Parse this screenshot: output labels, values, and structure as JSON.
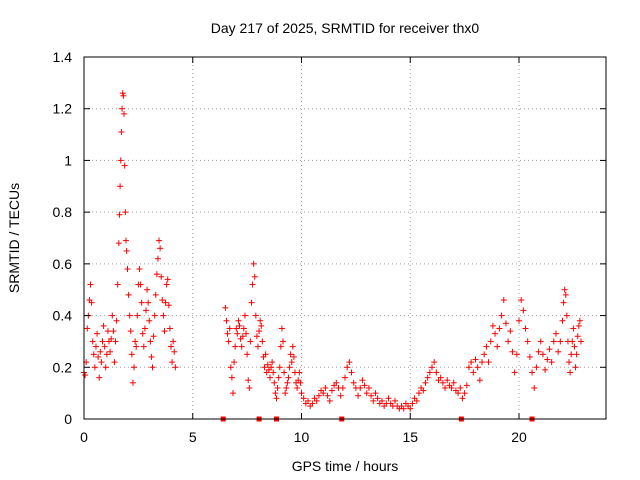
{
  "chart_data": {
    "type": "scatter",
    "title": "Day 217 of 2025, SRMTID for receiver thx0",
    "xlabel": "GPS time / hours",
    "ylabel": "SRMTID / TECUs",
    "xlim": [
      0,
      24
    ],
    "ylim": [
      0,
      1.4
    ],
    "x_ticks": [
      0,
      5,
      10,
      15,
      20
    ],
    "x_tick_labels": [
      "0",
      "5",
      "10",
      "15",
      "20"
    ],
    "y_ticks": [
      0,
      0.2,
      0.4,
      0.6,
      0.8,
      1.0,
      1.2,
      1.4
    ],
    "y_tick_labels": [
      "0",
      "0.2",
      "0.4",
      "0.6",
      "0.8",
      "1",
      "1.2",
      "1.4"
    ],
    "grid": true,
    "marker": "+",
    "color": "#ff0000",
    "series": [
      {
        "name": "SRMTID",
        "points": [
          [
            0.0,
            0.18
          ],
          [
            0.05,
            0.17
          ],
          [
            0.1,
            0.22
          ],
          [
            0.15,
            0.35
          ],
          [
            0.2,
            0.4
          ],
          [
            0.25,
            0.46
          ],
          [
            0.3,
            0.52
          ],
          [
            0.35,
            0.45
          ],
          [
            0.4,
            0.3
          ],
          [
            0.45,
            0.25
          ],
          [
            0.5,
            0.2
          ],
          [
            0.55,
            0.28
          ],
          [
            0.6,
            0.33
          ],
          [
            0.65,
            0.24
          ],
          [
            0.7,
            0.16
          ],
          [
            0.75,
            0.26
          ],
          [
            0.8,
            0.22
          ],
          [
            0.85,
            0.3
          ],
          [
            0.9,
            0.36
          ],
          [
            0.95,
            0.28
          ],
          [
            1.0,
            0.2
          ],
          [
            1.05,
            0.25
          ],
          [
            1.1,
            0.34
          ],
          [
            1.15,
            0.3
          ],
          [
            1.2,
            0.26
          ],
          [
            1.25,
            0.31
          ],
          [
            1.3,
            0.4
          ],
          [
            1.35,
            0.34
          ],
          [
            1.4,
            0.22
          ],
          [
            1.45,
            0.3
          ],
          [
            1.5,
            0.38
          ],
          [
            1.55,
            0.52
          ],
          [
            1.6,
            0.68
          ],
          [
            1.63,
            0.79
          ],
          [
            1.66,
            0.9
          ],
          [
            1.69,
            1.0
          ],
          [
            1.72,
            1.11
          ],
          [
            1.75,
            1.2
          ],
          [
            1.78,
            1.26
          ],
          [
            1.81,
            1.25
          ],
          [
            1.84,
            1.18
          ],
          [
            1.87,
            0.98
          ],
          [
            1.9,
            0.8
          ],
          [
            1.93,
            0.69
          ],
          [
            1.96,
            0.65
          ],
          [
            2.0,
            0.58
          ],
          [
            2.05,
            0.48
          ],
          [
            2.1,
            0.4
          ],
          [
            2.15,
            0.34
          ],
          [
            2.2,
            0.25
          ],
          [
            2.25,
            0.14
          ],
          [
            2.3,
            0.2
          ],
          [
            2.35,
            0.3
          ],
          [
            2.4,
            0.28
          ],
          [
            2.45,
            0.4
          ],
          [
            2.5,
            0.52
          ],
          [
            2.55,
            0.58
          ],
          [
            2.6,
            0.52
          ],
          [
            2.65,
            0.45
          ],
          [
            2.7,
            0.33
          ],
          [
            2.75,
            0.28
          ],
          [
            2.8,
            0.35
          ],
          [
            2.85,
            0.42
          ],
          [
            2.9,
            0.5
          ],
          [
            2.95,
            0.45
          ],
          [
            3.0,
            0.38
          ],
          [
            3.05,
            0.3
          ],
          [
            3.1,
            0.24
          ],
          [
            3.15,
            0.2
          ],
          [
            3.2,
            0.32
          ],
          [
            3.25,
            0.4
          ],
          [
            3.3,
            0.48
          ],
          [
            3.35,
            0.56
          ],
          [
            3.4,
            0.62
          ],
          [
            3.45,
            0.69
          ],
          [
            3.5,
            0.66
          ],
          [
            3.55,
            0.55
          ],
          [
            3.6,
            0.46
          ],
          [
            3.65,
            0.4
          ],
          [
            3.7,
            0.34
          ],
          [
            3.75,
            0.45
          ],
          [
            3.8,
            0.52
          ],
          [
            3.85,
            0.54
          ],
          [
            3.9,
            0.44
          ],
          [
            3.95,
            0.35
          ],
          [
            4.0,
            0.28
          ],
          [
            4.05,
            0.22
          ],
          [
            4.1,
            0.3
          ],
          [
            4.15,
            0.26
          ],
          [
            4.2,
            0.2
          ],
          [
            6.5,
            0.43
          ],
          [
            6.55,
            0.38
          ],
          [
            6.6,
            0.33
          ],
          [
            6.65,
            0.3
          ],
          [
            6.7,
            0.35
          ],
          [
            6.75,
            0.2
          ],
          [
            6.8,
            0.16
          ],
          [
            6.85,
            0.1
          ],
          [
            6.9,
            0.22
          ],
          [
            6.95,
            0.28
          ],
          [
            7.0,
            0.35
          ],
          [
            7.05,
            0.33
          ],
          [
            7.1,
            0.38
          ],
          [
            7.15,
            0.36
          ],
          [
            7.2,
            0.31
          ],
          [
            7.25,
            0.28
          ],
          [
            7.3,
            0.32
          ],
          [
            7.35,
            0.35
          ],
          [
            7.4,
            0.4
          ],
          [
            7.45,
            0.33
          ],
          [
            7.5,
            0.25
          ],
          [
            7.55,
            0.15
          ],
          [
            7.6,
            0.12
          ],
          [
            7.65,
            0.3
          ],
          [
            7.7,
            0.45
          ],
          [
            7.75,
            0.52
          ],
          [
            7.8,
            0.6
          ],
          [
            7.85,
            0.55
          ],
          [
            7.9,
            0.4
          ],
          [
            7.95,
            0.32
          ],
          [
            8.0,
            0.28
          ],
          [
            8.05,
            0.34
          ],
          [
            8.1,
            0.38
          ],
          [
            8.15,
            0.36
          ],
          [
            8.2,
            0.3
          ],
          [
            8.25,
            0.24
          ],
          [
            8.3,
            0.2
          ],
          [
            8.35,
            0.25
          ],
          [
            8.4,
            0.18
          ],
          [
            8.45,
            0.21
          ],
          [
            8.5,
            0.19
          ],
          [
            8.55,
            0.16
          ],
          [
            8.6,
            0.2
          ],
          [
            8.65,
            0.22
          ],
          [
            8.7,
            0.18
          ],
          [
            8.75,
            0.14
          ],
          [
            8.8,
            0.1
          ],
          [
            8.85,
            0.08
          ],
          [
            8.9,
            0.12
          ],
          [
            8.95,
            0.16
          ],
          [
            9.0,
            0.2
          ],
          [
            9.05,
            0.28
          ],
          [
            9.1,
            0.35
          ],
          [
            9.15,
            0.3
          ],
          [
            9.2,
            0.18
          ],
          [
            9.25,
            0.1
          ],
          [
            9.3,
            0.12
          ],
          [
            9.35,
            0.14
          ],
          [
            9.4,
            0.16
          ],
          [
            9.45,
            0.2
          ],
          [
            9.5,
            0.25
          ],
          [
            9.55,
            0.22
          ],
          [
            9.6,
            0.28
          ],
          [
            9.65,
            0.24
          ],
          [
            9.7,
            0.18
          ],
          [
            9.75,
            0.14
          ],
          [
            9.8,
            0.12
          ],
          [
            9.85,
            0.15
          ],
          [
            9.9,
            0.18
          ],
          [
            9.95,
            0.14
          ],
          [
            10.0,
            0.1
          ],
          [
            10.1,
            0.08
          ],
          [
            10.2,
            0.06
          ],
          [
            10.3,
            0.07
          ],
          [
            10.4,
            0.05
          ],
          [
            10.5,
            0.06
          ],
          [
            10.6,
            0.08
          ],
          [
            10.7,
            0.07
          ],
          [
            10.8,
            0.09
          ],
          [
            10.9,
            0.11
          ],
          [
            11.0,
            0.1
          ],
          [
            11.1,
            0.12
          ],
          [
            11.2,
            0.09
          ],
          [
            11.3,
            0.07
          ],
          [
            11.4,
            0.11
          ],
          [
            11.5,
            0.13
          ],
          [
            11.6,
            0.14
          ],
          [
            11.7,
            0.12
          ],
          [
            11.8,
            0.09
          ],
          [
            11.9,
            0.12
          ],
          [
            12.0,
            0.16
          ],
          [
            12.1,
            0.2
          ],
          [
            12.2,
            0.22
          ],
          [
            12.3,
            0.18
          ],
          [
            12.4,
            0.14
          ],
          [
            12.5,
            0.12
          ],
          [
            12.6,
            0.09
          ],
          [
            12.7,
            0.12
          ],
          [
            12.8,
            0.15
          ],
          [
            12.9,
            0.13
          ],
          [
            13.0,
            0.1
          ],
          [
            13.1,
            0.12
          ],
          [
            13.2,
            0.09
          ],
          [
            13.3,
            0.07
          ],
          [
            13.4,
            0.1
          ],
          [
            13.5,
            0.08
          ],
          [
            13.6,
            0.06
          ],
          [
            13.7,
            0.07
          ],
          [
            13.8,
            0.05
          ],
          [
            13.9,
            0.06
          ],
          [
            14.0,
            0.08
          ],
          [
            14.1,
            0.06
          ],
          [
            14.2,
            0.05
          ],
          [
            14.3,
            0.07
          ],
          [
            14.4,
            0.05
          ],
          [
            14.5,
            0.04
          ],
          [
            14.6,
            0.05
          ],
          [
            14.7,
            0.04
          ],
          [
            14.8,
            0.06
          ],
          [
            14.9,
            0.05
          ],
          [
            15.0,
            0.04
          ],
          [
            15.1,
            0.06
          ],
          [
            15.2,
            0.08
          ],
          [
            15.3,
            0.07
          ],
          [
            15.4,
            0.1
          ],
          [
            15.5,
            0.12
          ],
          [
            15.6,
            0.11
          ],
          [
            15.7,
            0.14
          ],
          [
            15.8,
            0.16
          ],
          [
            15.9,
            0.18
          ],
          [
            16.0,
            0.2
          ],
          [
            16.1,
            0.22
          ],
          [
            16.2,
            0.18
          ],
          [
            16.3,
            0.15
          ],
          [
            16.4,
            0.16
          ],
          [
            16.5,
            0.14
          ],
          [
            16.6,
            0.12
          ],
          [
            16.7,
            0.15
          ],
          [
            16.8,
            0.13
          ],
          [
            16.9,
            0.12
          ],
          [
            17.0,
            0.14
          ],
          [
            17.1,
            0.11
          ],
          [
            17.2,
            0.1
          ],
          [
            17.3,
            0.12
          ],
          [
            17.4,
            0.08
          ],
          [
            17.5,
            0.1
          ],
          [
            17.6,
            0.13
          ],
          [
            17.7,
            0.2
          ],
          [
            17.8,
            0.22
          ],
          [
            17.9,
            0.18
          ],
          [
            18.0,
            0.23
          ],
          [
            18.1,
            0.2
          ],
          [
            18.2,
            0.15
          ],
          [
            18.3,
            0.22
          ],
          [
            18.4,
            0.25
          ],
          [
            18.5,
            0.28
          ],
          [
            18.6,
            0.22
          ],
          [
            18.7,
            0.3
          ],
          [
            18.8,
            0.36
          ],
          [
            18.9,
            0.33
          ],
          [
            19.0,
            0.28
          ],
          [
            19.1,
            0.35
          ],
          [
            19.2,
            0.4
          ],
          [
            19.3,
            0.46
          ],
          [
            19.4,
            0.37
          ],
          [
            19.5,
            0.3
          ],
          [
            19.6,
            0.34
          ],
          [
            19.7,
            0.26
          ],
          [
            19.8,
            0.18
          ],
          [
            19.9,
            0.25
          ],
          [
            20.0,
            0.38
          ],
          [
            20.1,
            0.46
          ],
          [
            20.2,
            0.42
          ],
          [
            20.3,
            0.35
          ],
          [
            20.4,
            0.3
          ],
          [
            20.5,
            0.24
          ],
          [
            20.6,
            0.18
          ],
          [
            20.7,
            0.12
          ],
          [
            20.8,
            0.2
          ],
          [
            20.9,
            0.26
          ],
          [
            21.0,
            0.3
          ],
          [
            21.1,
            0.25
          ],
          [
            21.2,
            0.19
          ],
          [
            21.3,
            0.23
          ],
          [
            21.4,
            0.27
          ],
          [
            21.5,
            0.22
          ],
          [
            21.6,
            0.3
          ],
          [
            21.7,
            0.33
          ],
          [
            21.8,
            0.26
          ],
          [
            21.9,
            0.3
          ],
          [
            22.0,
            0.38
          ],
          [
            22.05,
            0.45
          ],
          [
            22.1,
            0.5
          ],
          [
            22.15,
            0.48
          ],
          [
            22.2,
            0.4
          ],
          [
            22.25,
            0.3
          ],
          [
            22.3,
            0.22
          ],
          [
            22.35,
            0.18
          ],
          [
            22.4,
            0.25
          ],
          [
            22.45,
            0.3
          ],
          [
            22.5,
            0.35
          ],
          [
            22.55,
            0.28
          ],
          [
            22.6,
            0.2
          ],
          [
            22.65,
            0.25
          ],
          [
            22.7,
            0.32
          ],
          [
            22.75,
            0.36
          ],
          [
            22.8,
            0.38
          ],
          [
            22.85,
            0.3
          ]
        ]
      }
    ],
    "gap_markers_x": [
      6.4,
      8.05,
      8.85,
      11.85,
      17.35,
      20.6
    ]
  }
}
